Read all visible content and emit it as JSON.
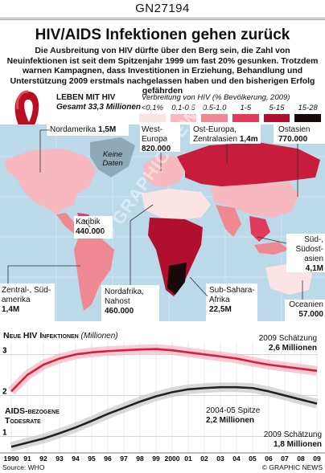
{
  "code": "GN27194",
  "title": "HIV/AIDS Infektionen gehen zurück",
  "intro": "Die Ausbreitung von HIV dürfte über den Berg sein, die Zahl von Neuinfektionen ist seit dem Spitzenjahr 1999 um fast 20% gesunken. Trotzdem warnen Kampagnen, dass Investitionen in Erziehung, Behandlung und Unterstützung 2009 erstmals nachgelassen haben und den bisherigen Erfolg gefährden",
  "living": {
    "heading": "LEBEN MIT HIV",
    "total_label": "Gesamt",
    "total_value": "33,3 Millionen"
  },
  "legend": {
    "title": "Verbreitung von HIV (% Bevölkerung, 2009)",
    "items": [
      {
        "label": "<0.1%",
        "color": "#fce4e6"
      },
      {
        "label": "0.1-0.5",
        "color": "#f7b8bf"
      },
      {
        "label": "0.5-1.0",
        "color": "#ee8893"
      },
      {
        "label": "1-5",
        "color": "#e23a5a"
      },
      {
        "label": "5-15",
        "color": "#b0102e"
      },
      {
        "label": "15-28",
        "color": "#1a0a0c"
      }
    ]
  },
  "regions": {
    "north_america": {
      "name": "Nordamerika",
      "value": "1,5M"
    },
    "western_europe": {
      "name1": "West-",
      "name2": "Europa",
      "value": "820.000"
    },
    "eastern_europe": {
      "name1": "Ost-Europa,",
      "name2": "Zentralasien",
      "value": "1,4m"
    },
    "east_asia": {
      "name": "Ostasien",
      "value": "770.000"
    },
    "no_data": {
      "line1": "Keine",
      "line2": "Daten"
    },
    "caribbean": {
      "name": "Karibik",
      "value": "440.000"
    },
    "south_asia": {
      "name1": "Süd-,",
      "name2": "Südost-",
      "name3": "asien",
      "value": "4,1M"
    },
    "latin_america": {
      "name1": "Zentral-, Süd-",
      "name2": "amerika",
      "value": "1,4M"
    },
    "north_africa": {
      "name1": "Nordafrika,",
      "name2": "Nahost",
      "value": "460.000"
    },
    "sub_saharan": {
      "name1": "Sub-Sahara-",
      "name2": "Afrika",
      "value": "22,5M"
    },
    "oceania": {
      "name": "Oceanien",
      "value": "57.000"
    }
  },
  "watermark": "© GRAPHIC NEWS",
  "chart_data": {
    "type": "line",
    "title": "Neue HIV Infektionen",
    "title_unit": "(Millionen)",
    "x": [
      1990,
      1991,
      1992,
      1993,
      1994,
      1995,
      1996,
      1997,
      1998,
      1999,
      2000,
      2001,
      2002,
      2003,
      2004,
      2005,
      2006,
      2007,
      2008,
      2009
    ],
    "x_tick_labels": [
      "1990",
      "91",
      "92",
      "93",
      "94",
      "95",
      "96",
      "97",
      "98",
      "99",
      "2000",
      "01",
      "02",
      "03",
      "04",
      "05",
      "06",
      "07",
      "08",
      "09"
    ],
    "y_tick_labels": [
      "3",
      "2",
      "1"
    ],
    "ylim": [
      0.6,
      3.3
    ],
    "series": [
      {
        "name": "Neue HIV Infektionen",
        "color": "#d81e3c",
        "values": [
          2.1,
          2.5,
          2.75,
          2.9,
          3.0,
          3.05,
          3.08,
          3.1,
          3.12,
          3.13,
          3.1,
          3.05,
          3.0,
          2.95,
          2.9,
          2.82,
          2.75,
          2.7,
          2.65,
          2.6
        ]
      },
      {
        "name": "AIDS-bezogene Todesrate",
        "color": "#222222",
        "values": [
          0.75,
          0.85,
          0.95,
          1.08,
          1.22,
          1.38,
          1.55,
          1.7,
          1.85,
          1.98,
          2.08,
          2.15,
          2.18,
          2.2,
          2.2,
          2.18,
          2.1,
          2.0,
          1.9,
          1.8
        ]
      }
    ],
    "annotations": {
      "estimate_2009_new": {
        "line1": "2009 Schätzung",
        "line2": "2,6 Millionen"
      },
      "peak_deaths": {
        "line1": "2004-05 Spitze",
        "line2": "2,2 Millionen"
      },
      "estimate_2009_deaths": {
        "line1": "2009 Schätzung",
        "line2": "1,8 Millionen"
      }
    },
    "deaths_label_line1": "AIDS-bezogene",
    "deaths_label_line2": "Todesrate"
  },
  "footer": {
    "source": "Source: WHO",
    "credit": "© GRAPHIC NEWS"
  }
}
